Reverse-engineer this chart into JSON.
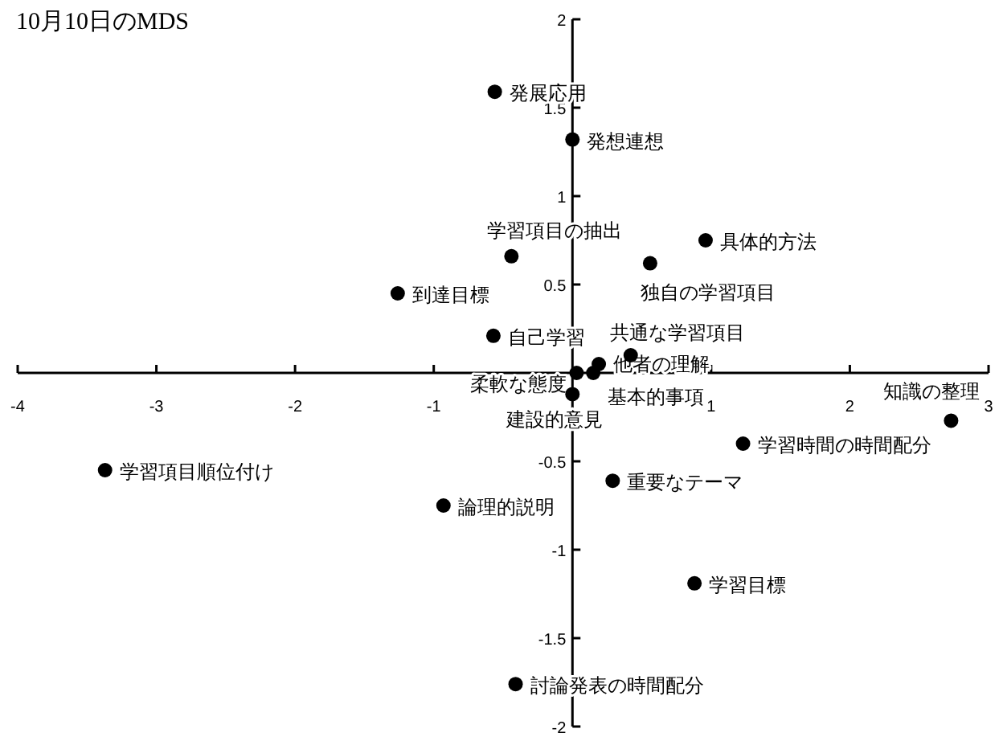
{
  "chart_data": {
    "type": "scatter",
    "title": "10月10日のMDS",
    "x": [
      -0.56,
      0,
      -0.44,
      0.96,
      0.56,
      -1.26,
      -0.57,
      0.42,
      0.03,
      0.19,
      0.15,
      0,
      2.73,
      1.23,
      -3.37,
      0.29,
      -0.93,
      0.88,
      -0.41
    ],
    "series": [
      {
        "color": "#000000",
        "values": [
          1.59,
          1.32,
          0.66,
          0.75,
          0.62,
          0.45,
          0.21,
          0.1,
          0,
          0.05,
          0,
          -0.12,
          -0.27,
          -0.4,
          -0.55,
          -0.61,
          -0.75,
          -1.19,
          -1.76
        ]
      }
    ],
    "xlim": [
      -4,
      3
    ],
    "ylim": [
      -2,
      2
    ],
    "xticks": [
      -4,
      -3,
      -2,
      -1,
      1,
      2,
      3
    ],
    "yticks": [
      -2,
      -1.5,
      -1,
      -0.5,
      0.5,
      1,
      1.5,
      2
    ],
    "marker": "circle",
    "grid": false,
    "annotations": [
      {
        "text": "発展応用",
        "x": -0.56,
        "y": 1.59
      },
      {
        "text": "発想連想",
        "x": 0,
        "y": 1.32
      },
      {
        "text": "学習項目の抽出",
        "x": -0.44,
        "y": 0.66
      },
      {
        "text": "具体的方法",
        "x": 0.96,
        "y": 0.75
      },
      {
        "text": "独自の学習項目",
        "x": 0.56,
        "y": 0.62
      },
      {
        "text": "到達目標",
        "x": -1.26,
        "y": 0.45
      },
      {
        "text": "自己学習",
        "x": -0.57,
        "y": 0.21
      },
      {
        "text": "共通な学習項目",
        "x": 0.42,
        "y": 0.1
      },
      {
        "text": "柔軟な態度",
        "x": 0.03,
        "y": 0
      },
      {
        "text": "他者の理解",
        "x": 0.19,
        "y": 0.05
      },
      {
        "text": "基本的事項",
        "x": 0.15,
        "y": 0
      },
      {
        "text": "建設的意見",
        "x": 0,
        "y": -0.12
      },
      {
        "text": "知識の整理",
        "x": 2.73,
        "y": -0.27
      },
      {
        "text": "学習時間の時間配分",
        "x": 1.23,
        "y": -0.4
      },
      {
        "text": "学習項目順位付け",
        "x": -3.37,
        "y": -0.55
      },
      {
        "text": "重要なテーマ",
        "x": 0.29,
        "y": -0.61
      },
      {
        "text": "論理的説明",
        "x": -0.93,
        "y": -0.75
      },
      {
        "text": "学習目標",
        "x": 0.88,
        "y": -1.19
      },
      {
        "text": "討論発表の時間配分",
        "x": -0.41,
        "y": -1.76
      }
    ]
  }
}
